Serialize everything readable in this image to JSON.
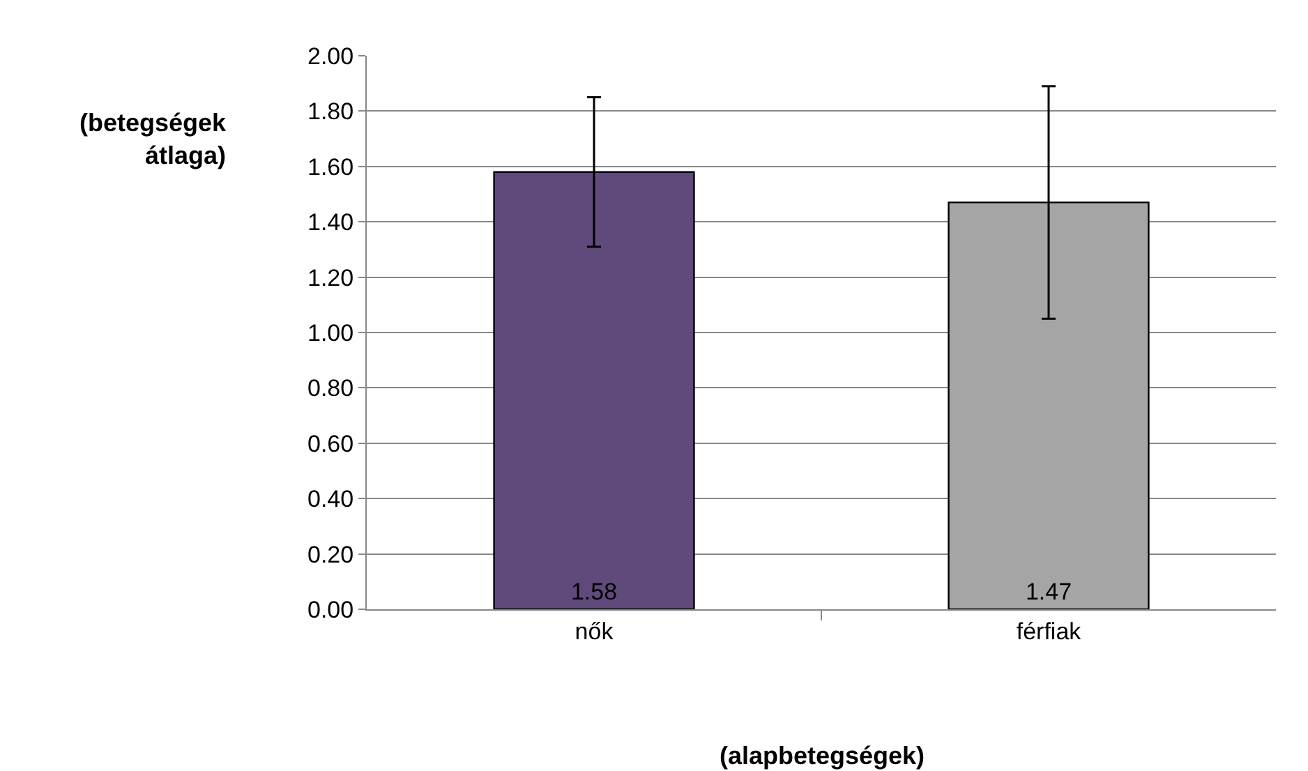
{
  "chart_data": {
    "type": "bar",
    "categories": [
      "nők",
      "férfiak"
    ],
    "values": [
      1.58,
      1.47
    ],
    "colors": [
      "#604a7b",
      "#a5a5a5"
    ],
    "errors": [
      0.27,
      0.42
    ],
    "data_labels": true,
    "xlabel": "(alapbetegségek)",
    "ylabel": "(betegségek átlaga)",
    "ylim": [
      0,
      2
    ],
    "yticks": [
      {
        "value": 0,
        "label": "0.00"
      },
      {
        "value": 0.2,
        "label": "0.20"
      },
      {
        "value": 0.4,
        "label": "0.40"
      },
      {
        "value": 0.6,
        "label": "0.60"
      },
      {
        "value": 0.8,
        "label": "0.80"
      },
      {
        "value": 1,
        "label": "1.00"
      },
      {
        "value": 1.2,
        "label": "1.20"
      },
      {
        "value": 1.4,
        "label": "1.40"
      },
      {
        "value": 1.6,
        "label": "1.60"
      },
      {
        "value": 1.8,
        "label": "1.80"
      },
      {
        "value": 2,
        "label": "2.00"
      }
    ],
    "grid": "y"
  }
}
